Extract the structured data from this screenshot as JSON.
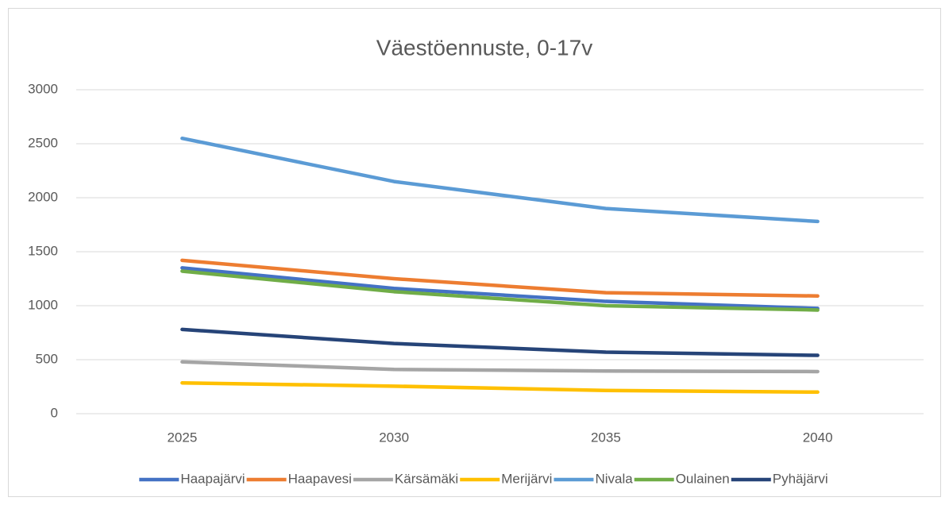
{
  "chart_data": {
    "type": "line",
    "title": "Väestöennuste, 0-17v",
    "categories": [
      "2025",
      "2030",
      "2035",
      "2040"
    ],
    "series": [
      {
        "name": "Haapajärvi",
        "color": "#4472c4",
        "values": [
          1350,
          1160,
          1040,
          975
        ]
      },
      {
        "name": "Haapavesi",
        "color": "#ed7d31",
        "values": [
          1420,
          1250,
          1120,
          1090
        ]
      },
      {
        "name": "Kärsämäki",
        "color": "#a5a5a5",
        "values": [
          480,
          410,
          395,
          390
        ]
      },
      {
        "name": "Merijärvi",
        "color": "#ffc000",
        "values": [
          285,
          255,
          215,
          200
        ]
      },
      {
        "name": "Nivala",
        "color": "#5b9bd5",
        "values": [
          2550,
          2150,
          1900,
          1780
        ]
      },
      {
        "name": "Oulainen",
        "color": "#70ad47",
        "values": [
          1320,
          1130,
          1000,
          960
        ]
      },
      {
        "name": "Pyhäjärvi",
        "color": "#264478",
        "values": [
          780,
          650,
          570,
          540
        ]
      }
    ],
    "ylim": [
      0,
      3000
    ],
    "yticks": [
      0,
      500,
      1000,
      1500,
      2000,
      2500,
      3000
    ],
    "grid": true,
    "legend": "bottom"
  }
}
